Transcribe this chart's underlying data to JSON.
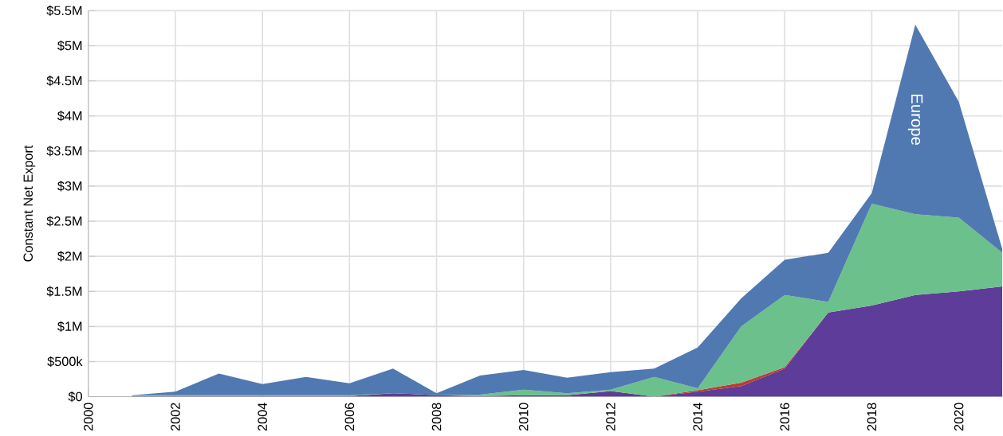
{
  "chart_data": {
    "type": "area",
    "stacked": true,
    "ylabel": "Constant Net Export",
    "grid": true,
    "x": [
      2001,
      2002,
      2003,
      2004,
      2005,
      2006,
      2007,
      2008,
      2009,
      2010,
      2011,
      2012,
      2013,
      2014,
      2015,
      2016,
      2017,
      2018,
      2019,
      2020,
      2021
    ],
    "xlim": [
      2000,
      2021
    ],
    "xticks": [
      2000,
      2002,
      2004,
      2006,
      2008,
      2010,
      2012,
      2014,
      2016,
      2018,
      2020
    ],
    "ylim": [
      0,
      5500000
    ],
    "yticks": [
      {
        "value": 0,
        "label": "$0"
      },
      {
        "value": 500000,
        "label": "$500k"
      },
      {
        "value": 1000000,
        "label": "$1M"
      },
      {
        "value": 1500000,
        "label": "$1.5M"
      },
      {
        "value": 2000000,
        "label": "$2M"
      },
      {
        "value": 2500000,
        "label": "$2.5M"
      },
      {
        "value": 3000000,
        "label": "$3M"
      },
      {
        "value": 3500000,
        "label": "$3.5M"
      },
      {
        "value": 4000000,
        "label": "$4M"
      },
      {
        "value": 4500000,
        "label": "$4.5M"
      },
      {
        "value": 5000000,
        "label": "$5M"
      },
      {
        "value": 5500000,
        "label": "$5.5M"
      }
    ],
    "series": [
      {
        "color": "#5e3c99",
        "values": [
          10000,
          10000,
          10000,
          10000,
          10000,
          10000,
          50000,
          20000,
          10000,
          20000,
          20000,
          80000,
          0,
          70000,
          150000,
          400000,
          1200000,
          1300000,
          1450000,
          1500000,
          1570000
        ]
      },
      {
        "color": "#c0392b",
        "values": [
          null,
          null,
          null,
          null,
          null,
          null,
          null,
          null,
          null,
          null,
          null,
          null,
          0,
          20000,
          50000,
          20000,
          0,
          null,
          null,
          null,
          null
        ]
      },
      {
        "color": "#6cc08b",
        "values": [
          10000,
          10000,
          10000,
          10000,
          10000,
          10000,
          0,
          0,
          20000,
          80000,
          30000,
          20000,
          280000,
          30000,
          800000,
          1030000,
          150000,
          1450000,
          1150000,
          1050000,
          480000
        ]
      },
      {
        "name": "Europe",
        "color": "#5079b1",
        "values": [
          0,
          50000,
          310000,
          160000,
          260000,
          170000,
          350000,
          30000,
          270000,
          280000,
          220000,
          250000,
          120000,
          580000,
          400000,
          500000,
          700000,
          150000,
          2700000,
          1650000,
          50000
        ]
      }
    ]
  }
}
